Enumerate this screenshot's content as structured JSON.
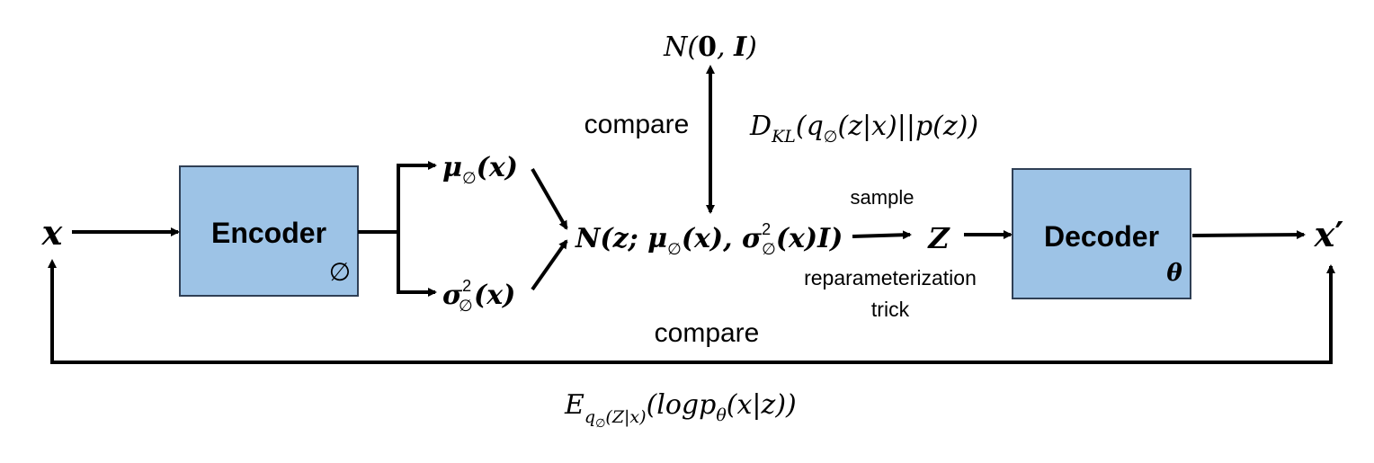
{
  "colors": {
    "box_fill": "#9dc3e6",
    "box_stroke": "#2f3f55",
    "arrow": "#000000"
  },
  "input": {
    "symbol": "x"
  },
  "output": {
    "symbol": "x",
    "prime": "′"
  },
  "encoder": {
    "label": "Encoder",
    "param": "∅"
  },
  "decoder": {
    "label": "Decoder",
    "param": "θ"
  },
  "mu": {
    "symbol": "μ",
    "sub": "∅",
    "args": "(x)"
  },
  "sigma": {
    "symbol": "σ",
    "sup": "2",
    "sub": "∅",
    "args": "(x)"
  },
  "gaussian": {
    "prefix": "N(z; ",
    "mu": "μ",
    "mu_sub": "∅",
    "mu_args": "(x), ",
    "sigma": "σ",
    "sigma_sup": "2",
    "sigma_sub": "∅",
    "tail": "(x)I)"
  },
  "prior": {
    "prefix": "N(",
    "zero": "0",
    "comma": ", ",
    "identity": "I",
    "close": ")"
  },
  "kl": {
    "D": "D",
    "D_sub": "KL",
    "open": "(q",
    "q_sub": "∅",
    "body": "(z|x)||p(z))"
  },
  "expectation": {
    "E": "E",
    "E_sub_q": "q",
    "E_sub_q_sub": "∅",
    "E_sub_rest": "(Z|x)",
    "body_open": "(logp",
    "p_sub": "θ",
    "body_close": "(x|z))"
  },
  "latent": {
    "symbol": "Z"
  },
  "labels": {
    "compare_top": "compare",
    "compare_bottom": "compare",
    "sample": "sample",
    "reparam_line1": "reparameterization",
    "reparam_line2": "trick"
  }
}
